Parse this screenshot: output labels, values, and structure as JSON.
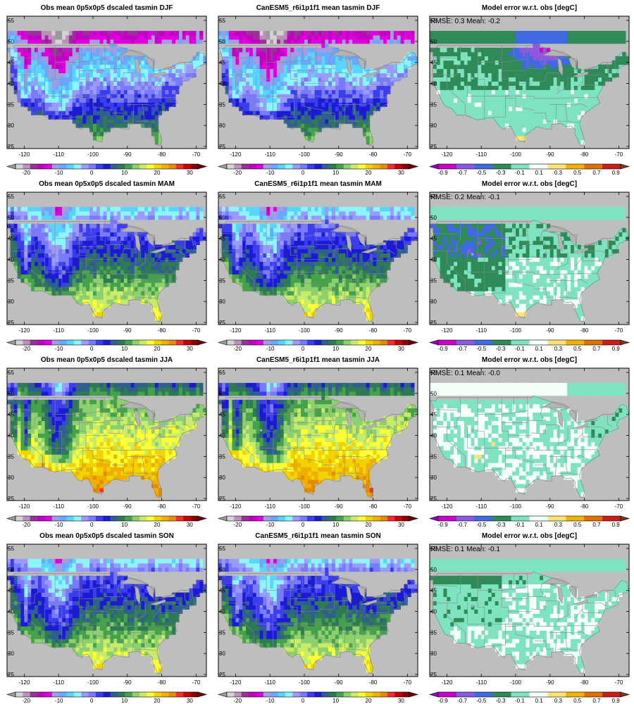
{
  "figure": {
    "rows": [
      {
        "season": "DJF",
        "obs_title": "Obs mean 0p5x0p5 dscaled tasmin DJF",
        "model_title": "CanESM5_r6i1p1f1 mean tasmin DJF",
        "diff_title": "Model error w.r.t. obs [degC]",
        "rmse_text": "RMSE: 0.3  Mean: -0.2"
      },
      {
        "season": "MAM",
        "obs_title": "Obs mean 0p5x0p5 dscaled tasmin MAM",
        "model_title": "CanESM5_r6i1p1f1 mean tasmin MAM",
        "diff_title": "Model error w.r.t. obs [degC]",
        "rmse_text": "RMSE: 0.2  Mean: -0.1"
      },
      {
        "season": "JJA",
        "obs_title": "Obs mean 0p5x0p5 dscaled tasmin JJA",
        "model_title": "CanESM5_r6i1p1f1 mean tasmin JJA",
        "diff_title": "Model error w.r.t. obs [degC]",
        "rmse_text": "RMSE: 0.1  Mean: -0.0"
      },
      {
        "season": "SON",
        "obs_title": "Obs mean 0p5x0p5 dscaled tasmin SON",
        "model_title": "CanESM5_r6i1p1f1 mean tasmin SON",
        "diff_title": "Model error w.r.t. obs [degC]",
        "rmse_text": "RMSE: 0.1  Mean: -0.1"
      }
    ]
  },
  "chart_data": {
    "type": "heatmap",
    "map_region": "Contiguous United States",
    "xlim": [
      -125,
      -67
    ],
    "ylim": [
      24.5,
      56
    ],
    "x_ticks": [
      -120,
      -110,
      -100,
      -90,
      -80,
      -70
    ],
    "y_ticks": [
      25,
      30,
      35,
      40,
      45,
      50,
      55
    ],
    "ocean_color": "#bebebe",
    "temperature_colorbar": {
      "ticks": [
        -20,
        -10,
        0,
        10,
        20,
        30
      ],
      "colors": [
        "#d3d3d3",
        "#bc8fbc",
        "#9b309b",
        "#c200c2",
        "#dd00dd",
        "#a29de0",
        "#6aa8ff",
        "#59d4ff",
        "#8cf5ff",
        "#9b9bff",
        "#7a7aff",
        "#3d3df0",
        "#1b1bd2",
        "#2f5f8f",
        "#2e7a55",
        "#46a24a",
        "#8ed06d",
        "#c6ec6a",
        "#ffff33",
        "#f2d200",
        "#f0b000",
        "#e28c00",
        "#ee3030",
        "#c80000",
        "#8c0000"
      ],
      "under_color": "#9a9a9a",
      "over_color": "#6a0000"
    },
    "error_colorbar": {
      "ticks": [
        -0.9,
        -0.7,
        -0.5,
        -0.3,
        -0.1,
        0.1,
        0.3,
        0.5,
        0.7,
        0.9
      ],
      "colors": [
        "#c800c8",
        "#8c58e0",
        "#4169e1",
        "#2e8b57",
        "#7fe3c0",
        "#f5fffa",
        "#ffe27a",
        "#f2b300",
        "#e07000",
        "#cc1c1c"
      ],
      "under_color": "#8c00c8",
      "over_color": "#7a3a1a"
    },
    "panels": [
      {
        "row": "DJF",
        "kind": "obs",
        "dominant_bands": [
          "-20 to -10 (north)",
          "-10 to 0 (central)",
          "0 to 10 (south)",
          "10 to 20 (Florida/Texas tip)"
        ]
      },
      {
        "row": "DJF",
        "kind": "model",
        "dominant_bands": [
          "-20 to -10 (north)",
          "-10 to 0 (central)",
          "0 to 10 (south)",
          "10 to 20 (Florida/Texas tip)"
        ]
      },
      {
        "row": "DJF",
        "kind": "error",
        "rmse": 0.3,
        "mean": -0.2,
        "dominant_bands": [
          "-0.5 to -0.3 (Great Lakes/north-central)",
          "-0.3 to -0.1 (north)",
          "-0.1 to 0.1 (south)",
          "0.1 to 0.3 (south Texas)"
        ]
      },
      {
        "row": "MAM",
        "kind": "obs",
        "dominant_bands": [
          "-10 to 0 (north)",
          "0 to 5 (central)",
          "5 to 15 (south)",
          "15 to 20 (Gulf coast)"
        ]
      },
      {
        "row": "MAM",
        "kind": "model",
        "dominant_bands": [
          "-10 to 0 (north)",
          "0 to 5 (central)",
          "5 to 15 (south)",
          "15 to 20 (Gulf coast)"
        ]
      },
      {
        "row": "MAM",
        "kind": "error",
        "rmse": 0.2,
        "mean": -0.1,
        "dominant_bands": [
          "-0.3 to -0.1 (west/north)",
          "-0.1 to 0.1 (southeast)",
          "0.1 to 0.3 (south Texas)"
        ]
      },
      {
        "row": "JJA",
        "kind": "obs",
        "dominant_bands": [
          "0 to 10 (Rockies)",
          "10 to 15 (north)",
          "15 to 20 (central)",
          "20 to 25 (south)"
        ]
      },
      {
        "row": "JJA",
        "kind": "model",
        "dominant_bands": [
          "0 to 10 (Rockies)",
          "10 to 15 (north)",
          "15 to 20 (central)",
          "20 to 25 (south)"
        ]
      },
      {
        "row": "JJA",
        "kind": "error",
        "rmse": 0.1,
        "mean": -0.0,
        "dominant_bands": [
          "-0.1 to 0.1 (most of domain)",
          "-0.3 to -0.1 (northeast)"
        ]
      },
      {
        "row": "SON",
        "kind": "obs",
        "dominant_bands": [
          "-10 to 0 (north)",
          "0 to 10 (central)",
          "10 to 20 (south)"
        ]
      },
      {
        "row": "SON",
        "kind": "model",
        "dominant_bands": [
          "-10 to 0 (north)",
          "0 to 10 (central)",
          "10 to 20 (south)"
        ]
      },
      {
        "row": "SON",
        "kind": "error",
        "rmse": 0.1,
        "mean": -0.1,
        "dominant_bands": [
          "-0.3 to -0.1 (northwest/north)",
          "-0.1 to 0.1 (most of domain)",
          "0.1 to 0.3 (isolated)"
        ]
      }
    ]
  }
}
